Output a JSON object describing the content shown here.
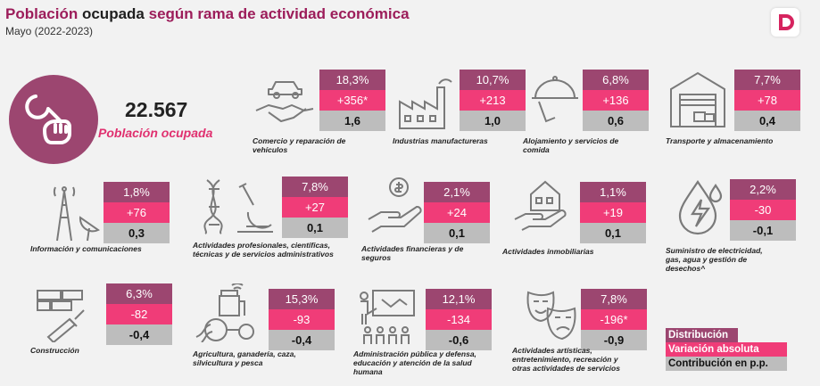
{
  "header": {
    "title_part1": "Población",
    "title_part2": "ocupada",
    "title_part3": "según rama de actividad económica",
    "subtitle": "Mayo (2022-2023)"
  },
  "summary": {
    "value": "22.567",
    "label": "Población ocupada",
    "icon": "wrench-icon"
  },
  "colors": {
    "distribution": "#9c4670",
    "variation": "#f03c78",
    "contribution": "#bdbdbd",
    "title": "#9c1d5a"
  },
  "sectors": [
    {
      "label": "Comercio y reparación de vehículos",
      "distribution": "18,3%",
      "variation": "+356*",
      "contribution": "1,6",
      "icon": "handshake-car-icon"
    },
    {
      "label": "Industrias manufactureras",
      "distribution": "10,7%",
      "variation": "+213",
      "contribution": "1,0",
      "icon": "factory-icon"
    },
    {
      "label": "Alojamiento y servicios de comida",
      "distribution": "6,8%",
      "variation": "+136",
      "contribution": "0,6",
      "icon": "food-tray-icon"
    },
    {
      "label": "Transporte y almacenamiento",
      "distribution": "7,7%",
      "variation": "+78",
      "contribution": "0,4",
      "icon": "warehouse-icon"
    },
    {
      "label": "Información y comunicaciones",
      "distribution": "1,8%",
      "variation": "+76",
      "contribution": "0,3",
      "icon": "antenna-icon"
    },
    {
      "label": "Actividades profesionales, científicas, técnicas y de servicios administrativos",
      "distribution": "7,8%",
      "variation": "+27",
      "contribution": "0,1",
      "icon": "dna-microscope-icon"
    },
    {
      "label": "Actividades financieras y de seguros",
      "distribution": "2,1%",
      "variation": "+24",
      "contribution": "0,1",
      "icon": "money-hand-icon"
    },
    {
      "label": "Actividades inmobiliarias",
      "distribution": "1,1%",
      "variation": "+19",
      "contribution": "0,1",
      "icon": "house-hand-icon"
    },
    {
      "label": "Suministro de electricidad, gas, agua y gestión de desechos^",
      "distribution": "2,2%",
      "variation": "-30",
      "contribution": "-0,1",
      "icon": "energy-drop-icon"
    },
    {
      "label": "Construcción",
      "distribution": "6,3%",
      "variation": "-82",
      "contribution": "-0,4",
      "icon": "trowel-icon"
    },
    {
      "label": "Agricultura, ganadería, caza, silvicultura y pesca",
      "distribution": "15,3%",
      "variation": "-93",
      "contribution": "-0,4",
      "icon": "tractor-icon"
    },
    {
      "label": "Administración pública y defensa, educación y atención de la salud humana",
      "distribution": "12,1%",
      "variation": "-134",
      "contribution": "-0,6",
      "icon": "presentation-icon"
    },
    {
      "label": "Actividades artísticas, entretenimiento, recreación y otras actividades de servicios",
      "distribution": "7,8%",
      "variation": "-196*",
      "contribution": "-0,9",
      "icon": "theater-masks-icon"
    }
  ],
  "legend": {
    "distribution": "Distribución",
    "variation": "Variación absoluta",
    "contribution": "Contribución en p.p."
  }
}
